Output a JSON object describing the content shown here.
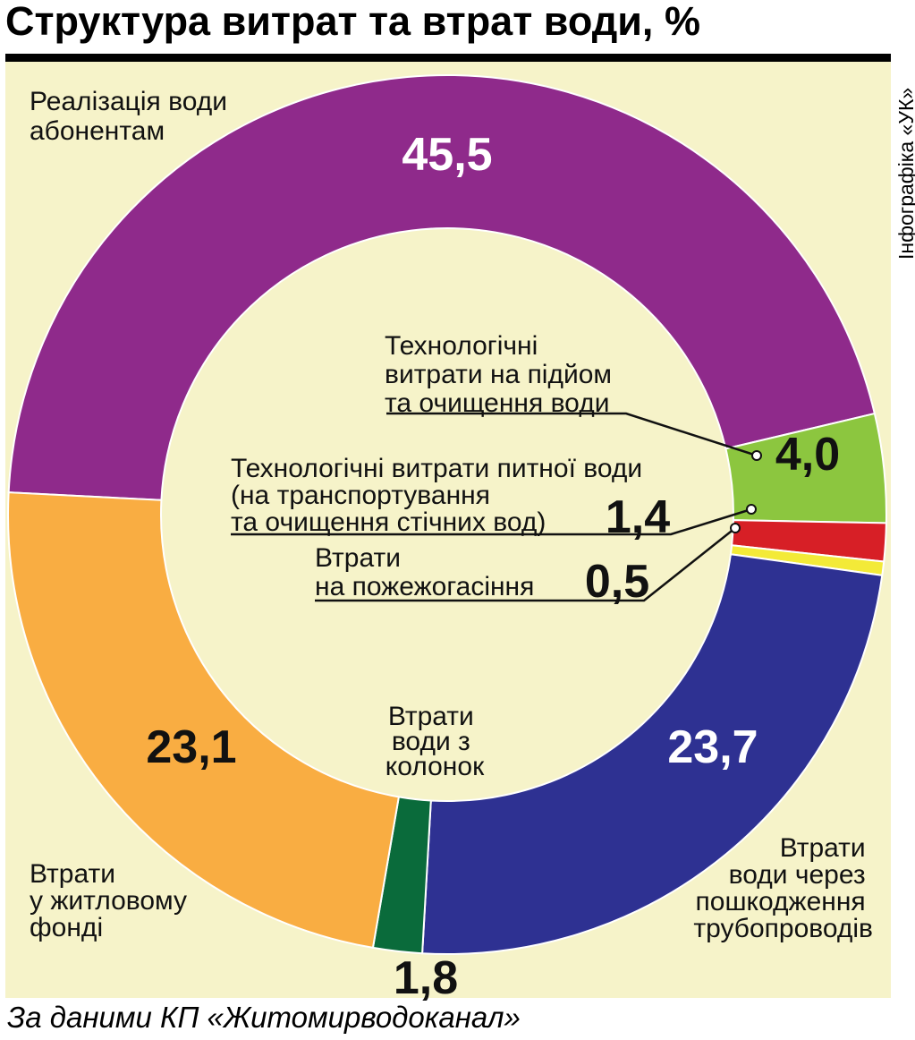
{
  "title": "Структура витрат та втрат води, %",
  "credit": "Інфографіка «УК»",
  "source": "За даними КП «Житомирводоканал»",
  "chart_data": {
    "type": "pie",
    "style": "donut",
    "unit": "%",
    "title": "Структура витрат та втрат води, %",
    "slices": [
      {
        "label": "Реалізація води абонентам",
        "value": 45.5,
        "display": "45,5",
        "color": "#8f2a8b"
      },
      {
        "label": "Технологічні витрати на підйом та очищення води",
        "value": 4.0,
        "display": "4,0",
        "color": "#8cc63f"
      },
      {
        "label": "Технологічні витрати питної води (на транспортування та очищення стічних вод)",
        "value": 1.4,
        "display": "1,4",
        "color": "#d71f26"
      },
      {
        "label": "Втрати на пожежогасіння",
        "value": 0.5,
        "display": "0,5",
        "color": "#f3ea38"
      },
      {
        "label": "Втрати води через пошкодження трубопроводів",
        "value": 23.7,
        "display": "23,7",
        "color": "#2e3192"
      },
      {
        "label": "Втрати води з колонок",
        "value": 1.8,
        "display": "1,8",
        "color": "#0a6b3b"
      },
      {
        "label": "Втрати у житловому фонді",
        "value": 23.1,
        "display": "23,1",
        "color": "#f9ad42"
      }
    ],
    "legend": "none"
  }
}
